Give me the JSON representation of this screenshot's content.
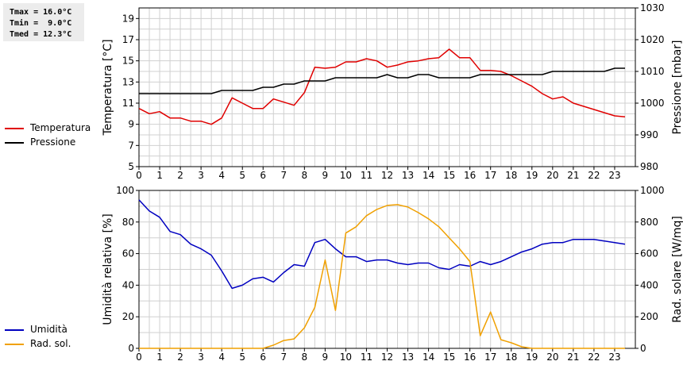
{
  "stats": {
    "tmax": "Tmax = 16.0°C",
    "tmin": "Tmin =  9.0°C",
    "tmed": "Tmed = 12.3°C"
  },
  "colors": {
    "temperature": "#e00000",
    "pressure": "#000000",
    "humidity": "#0000c0",
    "radiation": "#f0a000",
    "grid": "#d0d0d0"
  },
  "chart_data": [
    {
      "type": "line",
      "xlim": [
        0,
        24
      ],
      "xticks": [
        0,
        1,
        2,
        3,
        4,
        5,
        6,
        7,
        8,
        9,
        10,
        11,
        12,
        13,
        14,
        15,
        16,
        17,
        18,
        19,
        20,
        21,
        22,
        23
      ],
      "ylabel": "Temperatura [°C]",
      "ylim": [
        5,
        20
      ],
      "yticks": [
        5,
        7,
        9,
        11,
        13,
        15,
        17,
        19
      ],
      "y2label": "Pressione [mbar]",
      "y2lim": [
        980,
        1030
      ],
      "y2ticks": [
        980,
        990,
        1000,
        1010,
        1020,
        1030
      ],
      "grid": true,
      "legend_position": "left",
      "series": [
        {
          "name": "Temperatura",
          "axis": "left",
          "x": [
            0,
            0.5,
            1,
            1.5,
            2,
            2.5,
            3,
            3.5,
            4,
            4.5,
            5,
            5.5,
            6,
            6.5,
            7,
            7.5,
            8,
            8.5,
            9,
            9.5,
            10,
            10.5,
            11,
            11.5,
            12,
            12.5,
            13,
            13.5,
            14,
            14.5,
            15,
            15.5,
            16,
            16.5,
            17,
            17.5,
            18,
            18.5,
            19,
            19.5,
            20,
            20.5,
            21,
            21.5,
            22,
            22.5,
            23,
            23.5
          ],
          "values": [
            10.5,
            10.0,
            10.2,
            9.6,
            9.6,
            9.3,
            9.3,
            9.0,
            9.6,
            11.5,
            11.0,
            10.5,
            10.5,
            11.4,
            11.1,
            10.8,
            12.0,
            14.4,
            14.3,
            14.4,
            14.9,
            14.9,
            15.2,
            15.0,
            14.4,
            14.6,
            14.9,
            15.0,
            15.2,
            15.3,
            16.1,
            15.3,
            15.3,
            14.1,
            14.1,
            14.0,
            13.6,
            13.1,
            12.6,
            11.9,
            11.4,
            11.6,
            11.0,
            10.7,
            10.4,
            10.1,
            9.8,
            9.7
          ]
        },
        {
          "name": "Pressione",
          "axis": "right",
          "x": [
            0,
            0.5,
            1,
            1.5,
            2,
            2.5,
            3,
            3.5,
            4,
            4.5,
            5,
            5.5,
            6,
            6.5,
            7,
            7.5,
            8,
            8.5,
            9,
            9.5,
            10,
            10.5,
            11,
            11.5,
            12,
            12.5,
            13,
            13.5,
            14,
            14.5,
            15,
            15.5,
            16,
            16.5,
            17,
            17.5,
            18,
            18.5,
            19,
            19.5,
            20,
            20.5,
            21,
            21.5,
            22,
            22.5,
            23,
            23.5
          ],
          "values": [
            1003,
            1003,
            1003,
            1003,
            1003,
            1003,
            1003,
            1003,
            1004,
            1004,
            1004,
            1004,
            1005,
            1005,
            1006,
            1006,
            1007,
            1007,
            1007,
            1008,
            1008,
            1008,
            1008,
            1008,
            1009,
            1008,
            1008,
            1009,
            1009,
            1008,
            1008,
            1008,
            1008,
            1009,
            1009,
            1009,
            1009,
            1009,
            1009,
            1009,
            1010,
            1010,
            1010,
            1010,
            1010,
            1010,
            1011,
            1011
          ]
        }
      ]
    },
    {
      "type": "line",
      "xlim": [
        0,
        24
      ],
      "xticks": [
        0,
        1,
        2,
        3,
        4,
        5,
        6,
        7,
        8,
        9,
        10,
        11,
        12,
        13,
        14,
        15,
        16,
        17,
        18,
        19,
        20,
        21,
        22,
        23
      ],
      "ylabel": "Umidità relativa [%]",
      "ylim": [
        0,
        100
      ],
      "yticks": [
        0,
        20,
        40,
        60,
        80,
        100
      ],
      "y2label": "Rad. solare [W/mq]",
      "y2lim": [
        0,
        1000
      ],
      "y2ticks": [
        0,
        200,
        400,
        600,
        800,
        1000
      ],
      "grid": true,
      "legend_position": "left",
      "series": [
        {
          "name": "Umidità",
          "axis": "left",
          "x": [
            0,
            0.5,
            1,
            1.5,
            2,
            2.5,
            3,
            3.5,
            4,
            4.5,
            5,
            5.5,
            6,
            6.5,
            7,
            7.5,
            8,
            8.5,
            9,
            9.5,
            10,
            10.5,
            11,
            11.5,
            12,
            12.5,
            13,
            13.5,
            14,
            14.5,
            15,
            15.5,
            16,
            16.5,
            17,
            17.5,
            18,
            18.5,
            19,
            19.5,
            20,
            20.5,
            21,
            21.5,
            22,
            22.5,
            23,
            23.5
          ],
          "values": [
            94,
            87,
            83,
            74,
            72,
            66,
            63,
            59,
            49,
            38,
            40,
            44,
            45,
            42,
            48,
            53,
            52,
            67,
            69,
            63,
            58,
            58,
            55,
            56,
            56,
            54,
            53,
            54,
            54,
            51,
            50,
            53,
            52,
            55,
            53,
            55,
            58,
            61,
            63,
            66,
            67,
            67,
            69,
            69,
            69,
            68,
            67,
            66
          ]
        },
        {
          "name": "Rad. sol.",
          "axis": "right",
          "x": [
            0,
            0.5,
            1,
            1.5,
            2,
            2.5,
            3,
            3.5,
            4,
            4.5,
            5,
            5.5,
            6,
            6.5,
            7,
            7.5,
            8,
            8.5,
            9,
            9.5,
            10,
            10.5,
            11,
            11.5,
            12,
            12.5,
            13,
            13.5,
            14,
            14.5,
            15,
            15.5,
            16,
            16.5,
            17,
            17.5,
            18,
            18.5,
            19,
            19.5,
            20,
            20.5,
            21,
            21.5,
            22,
            22.5,
            23,
            23.5
          ],
          "values": [
            0,
            0,
            0,
            0,
            0,
            0,
            0,
            0,
            0,
            0,
            0,
            0,
            0,
            20,
            50,
            60,
            130,
            260,
            560,
            240,
            730,
            770,
            840,
            880,
            905,
            910,
            895,
            860,
            820,
            770,
            700,
            630,
            550,
            80,
            230,
            55,
            35,
            10,
            0,
            0,
            0,
            0,
            0,
            0,
            0,
            0,
            0,
            0
          ]
        }
      ]
    }
  ]
}
